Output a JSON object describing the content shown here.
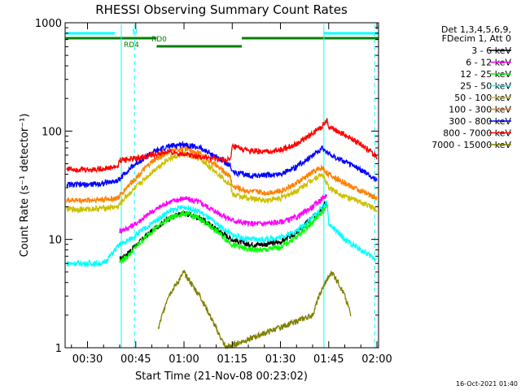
{
  "chart_data": {
    "type": "line",
    "title": "RHESSI Observing Summary Count Rates",
    "xlabel": "Start Time (21-Nov-08 00:23:02)",
    "ylabel": "Count Rate (s⁻¹ detector⁻¹)",
    "y_scale": "log",
    "ylim": [
      1,
      1000
    ],
    "xlim_minutes": [
      23.03,
      120.5
    ],
    "x_ticks": [
      {
        "label": "00:30",
        "minute": 30
      },
      {
        "label": "00:45",
        "minute": 45
      },
      {
        "label": "01:00",
        "minute": 60
      },
      {
        "label": "01:15",
        "minute": 75
      },
      {
        "label": "01:30",
        "minute": 90
      },
      {
        "label": "01:45",
        "minute": 105
      },
      {
        "label": "02:00",
        "minute": 120
      }
    ],
    "y_ticks": [
      {
        "label": "1",
        "value": 1
      },
      {
        "label": "10",
        "value": 10
      },
      {
        "label": "100",
        "value": 100
      },
      {
        "label": "1000",
        "value": 1000
      }
    ],
    "legend_header": [
      "Det 1,3,4,5,6,9,",
      "FDecim 1, Att 0"
    ],
    "legend_position": "right",
    "timestamp": "16-Oct-2021 01:40",
    "series": [
      {
        "name": "3 - 6 keV",
        "color": "#000000",
        "x": [
          40,
          42,
          45,
          50,
          55,
          60,
          65,
          70,
          75,
          80,
          85,
          90,
          95,
          100,
          103,
          104.5
        ],
        "y": [
          6.5,
          7.2,
          8.8,
          12,
          15.5,
          17.5,
          15.8,
          12.5,
          10,
          9,
          9,
          9.5,
          11.5,
          16,
          20,
          22
        ]
      },
      {
        "name": "6 - 12 keV",
        "color": "#ff00ff",
        "x": [
          40,
          42,
          45,
          50,
          55,
          60,
          65,
          70,
          75,
          80,
          85,
          90,
          95,
          100,
          103,
          104.5
        ],
        "y": [
          12,
          12.5,
          14,
          18,
          22,
          24,
          22,
          18,
          15,
          14,
          14,
          14.5,
          16,
          20,
          24,
          26
        ]
      },
      {
        "name": "12 - 25 keV",
        "color": "#00ff00",
        "x": [
          40,
          42,
          45,
          50,
          55,
          60,
          65,
          70,
          75,
          80,
          85,
          90,
          95,
          100,
          103,
          104.5
        ],
        "y": [
          6.2,
          6.8,
          8.5,
          12,
          15.5,
          17.5,
          15.5,
          12,
          9,
          8,
          8,
          8.5,
          10.5,
          14.5,
          18,
          20
        ]
      },
      {
        "name": "25 - 50 keV",
        "color": "#00ffff",
        "x": [
          23.5,
          30,
          35,
          40,
          42,
          45,
          50,
          55,
          60,
          65,
          70,
          75,
          80,
          85,
          90,
          95,
          100,
          103,
          104.5,
          105,
          110,
          115,
          120
        ],
        "y": [
          6,
          6,
          6,
          9,
          9.5,
          11,
          14,
          18,
          20,
          18,
          14,
          11,
          10,
          10,
          10.5,
          12,
          16,
          20,
          22,
          14,
          10,
          8,
          6.5
        ]
      },
      {
        "name": "50 - 100 keV",
        "color": "#ccc000",
        "x": [
          23.5,
          30,
          35,
          39.5,
          42,
          45,
          50,
          55,
          60,
          65,
          70,
          74.5,
          75,
          80,
          85,
          90,
          95,
          100,
          103,
          105,
          110,
          115,
          120
        ],
        "y": [
          19,
          19,
          19.5,
          20,
          25,
          30,
          42,
          55,
          62,
          55,
          42,
          32,
          26,
          24,
          23,
          24,
          28,
          36,
          40,
          30,
          25,
          22,
          19
        ]
      },
      {
        "name": "100 - 300 keV",
        "color": "#ff8000",
        "x": [
          23.5,
          30,
          35,
          39.5,
          42,
          45,
          50,
          55,
          60,
          65,
          70,
          74.5,
          75,
          80,
          85,
          90,
          95,
          100,
          103,
          105,
          110,
          115,
          120
        ],
        "y": [
          23,
          23,
          23.5,
          24,
          30,
          37,
          52,
          64,
          70,
          62,
          48,
          38,
          31,
          28,
          27,
          28,
          33,
          42,
          46,
          40,
          33,
          28,
          24
        ]
      },
      {
        "name": "300 - 800 keV",
        "color": "#0000ff",
        "x": [
          23.5,
          30,
          35,
          39.5,
          42,
          45,
          50,
          55,
          60,
          65,
          70,
          74.5,
          75,
          80,
          85,
          90,
          95,
          100,
          103,
          105,
          110,
          115,
          120
        ],
        "y": [
          32,
          32,
          33,
          35,
          42,
          50,
          63,
          72,
          76,
          70,
          58,
          48,
          42,
          39,
          39,
          40,
          47,
          60,
          70,
          62,
          52,
          44,
          35
        ]
      },
      {
        "name": "800 - 7000 keV",
        "color": "#ff0000",
        "x": [
          23.5,
          30,
          35,
          39.5,
          40,
          45,
          50,
          55,
          60,
          65,
          70,
          74.5,
          75,
          80,
          85,
          90,
          95,
          100,
          103,
          104.5,
          105,
          110,
          115,
          120
        ],
        "y": [
          45,
          44,
          45,
          47,
          54,
          56,
          60,
          64,
          62,
          58,
          55,
          54,
          72,
          66,
          64,
          67,
          76,
          95,
          112,
          128,
          110,
          92,
          76,
          58
        ]
      },
      {
        "name": "7000 - 15000 keV",
        "color": "#808000",
        "x": [
          52,
          55,
          58,
          60,
          62,
          65,
          68,
          70,
          73,
          100,
          102,
          104,
          106,
          108,
          110,
          112
        ],
        "y": [
          1.5,
          3,
          4,
          5,
          4,
          3,
          2,
          1.5,
          1,
          2,
          3,
          4,
          5,
          4,
          3,
          2
        ]
      }
    ],
    "annotations": [
      {
        "label": "N",
        "color": "#00ffff"
      },
      {
        "label": "RD0",
        "color": "#008000"
      },
      {
        "label": "RD4",
        "color": "#008000"
      }
    ]
  }
}
